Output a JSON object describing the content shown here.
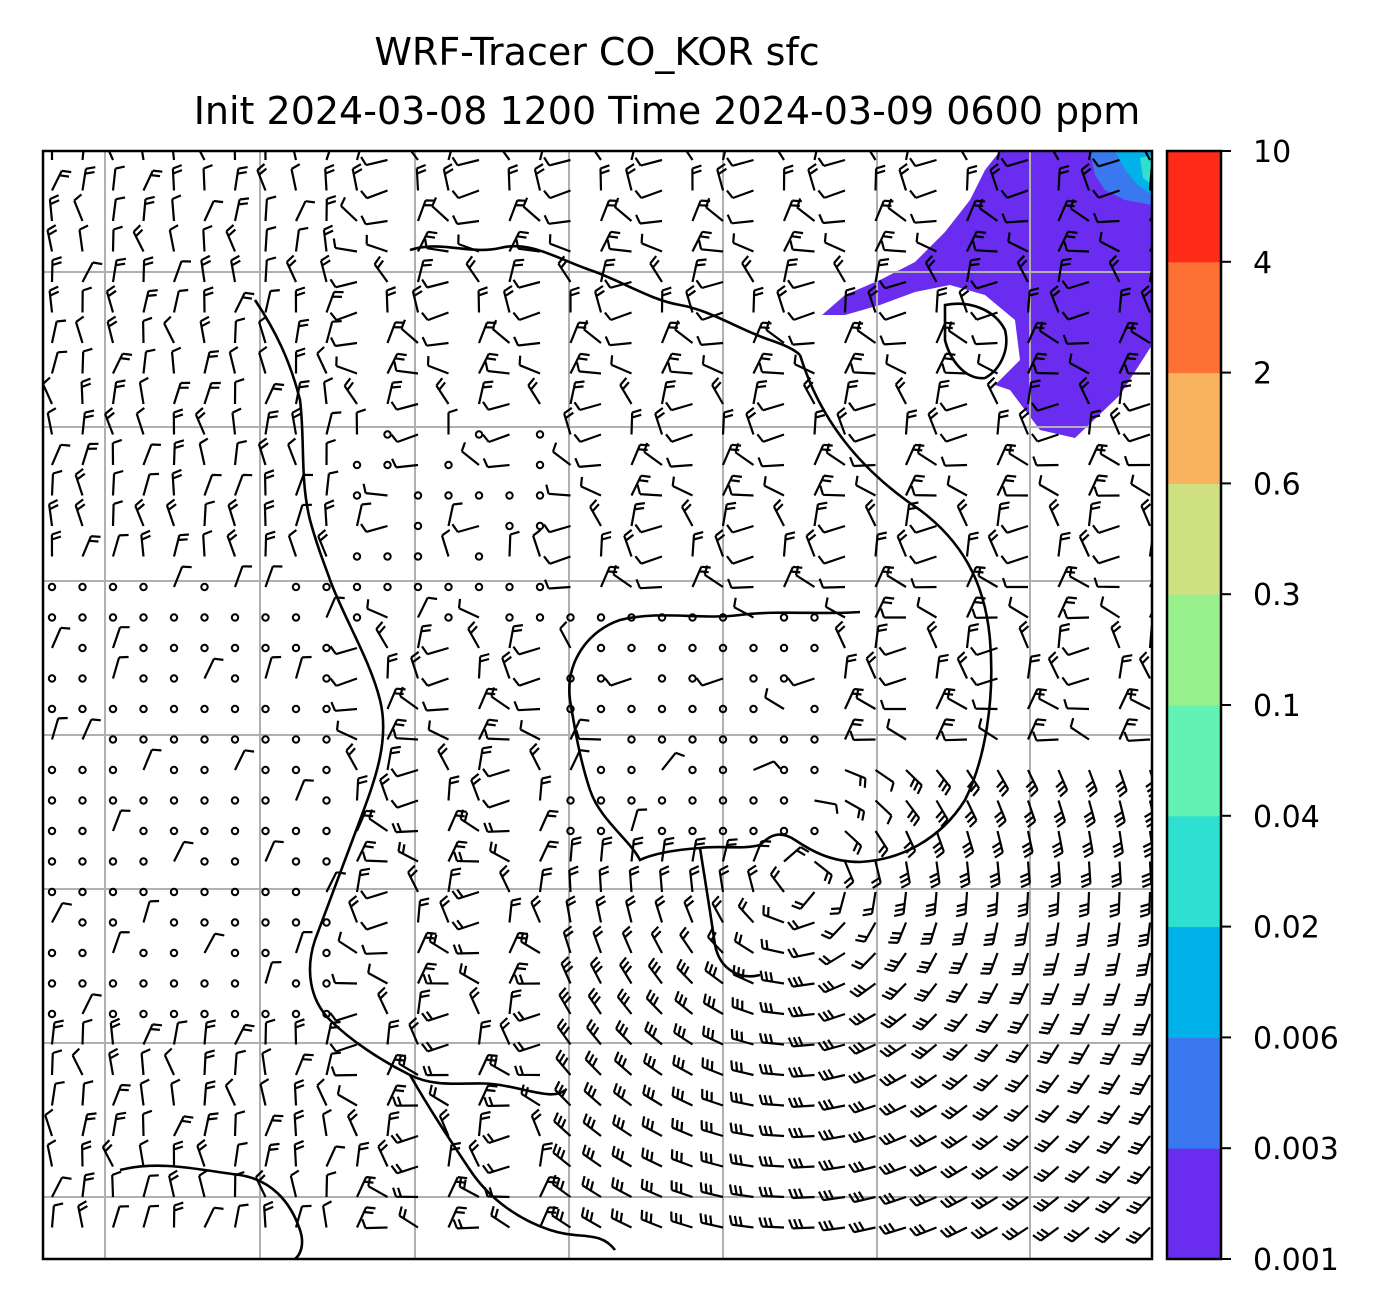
{
  "title": {
    "line1": "WRF-Tracer CO_KOR sfc",
    "line2": "Init 2024-03-08 1200 Time 2024-03-09 0600 ppm"
  },
  "map": {
    "field": "CO_KOR",
    "level": "sfc",
    "units": "ppm",
    "gridlines": true,
    "wind_barbs": true,
    "coastlines": true
  },
  "colorbar": {
    "levels": [
      "0.001",
      "0.003",
      "0.006",
      "0.02",
      "0.04",
      "0.1",
      "0.3",
      "0.6",
      "2",
      "4",
      "10"
    ],
    "colors": [
      "#6a2df0",
      "#3a78ef",
      "#00b2e8",
      "#2de0cf",
      "#62f2b4",
      "#98f08d",
      "#cfe080",
      "#f9b25e",
      "#ff7033",
      "#ff2a17"
    ]
  },
  "chart_data": {
    "type": "heatmap",
    "title": "WRF-Tracer CO_KOR sfc\nInit 2024-03-08 1200 Time 2024-03-09 0600 ppm",
    "colorbar_levels": [
      0.001,
      0.003,
      0.006,
      0.02,
      0.04,
      0.1,
      0.3,
      0.6,
      2,
      4,
      10
    ],
    "plume_location": "top-right",
    "plume_max_bin": "0.02-0.04",
    "grid": true
  }
}
